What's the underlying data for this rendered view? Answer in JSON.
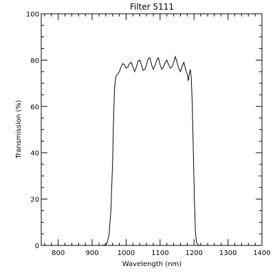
{
  "chart_data": {
    "type": "line",
    "title": "Filter 5111",
    "xlabel": "Wavelength (nm)",
    "ylabel": "Transmission (%)",
    "xlim": [
      750,
      1400
    ],
    "ylim": [
      0,
      100
    ],
    "x_ticks": [
      800,
      900,
      1000,
      1100,
      1200,
      1300,
      1400
    ],
    "y_ticks": [
      0,
      20,
      40,
      60,
      80,
      100
    ],
    "x_tick_labels": [
      "800",
      "900",
      "1000",
      "1100",
      "1200",
      "1300",
      "1400"
    ],
    "y_tick_labels": [
      "0",
      "20",
      "40",
      "60",
      "80",
      "100"
    ],
    "x_minor_step": 20,
    "y_minor_step": 5,
    "grid": false,
    "series": [
      {
        "x": [
          750,
          900,
          930,
          940,
          945,
          950,
          955,
          960,
          963,
          966,
          970,
          975,
          980,
          985,
          990,
          995,
          1000,
          1005,
          1010,
          1015,
          1020,
          1025,
          1030,
          1035,
          1040,
          1045,
          1050,
          1055,
          1060,
          1065,
          1070,
          1075,
          1080,
          1085,
          1090,
          1095,
          1100,
          1105,
          1110,
          1115,
          1120,
          1125,
          1130,
          1135,
          1140,
          1145,
          1150,
          1155,
          1160,
          1165,
          1170,
          1175,
          1180,
          1183,
          1186,
          1189,
          1192,
          1195,
          1198,
          1201,
          1204,
          1207,
          1212,
          1220,
          1400
        ],
        "y": [
          0,
          0,
          0,
          0.3,
          1.5,
          5,
          15,
          35,
          55,
          68,
          73,
          74,
          75,
          77,
          78.5,
          78,
          76.5,
          77,
          78.5,
          79,
          77,
          75,
          77,
          79.5,
          80,
          78,
          75.5,
          76,
          78,
          80.5,
          81,
          78,
          76,
          77.5,
          80,
          81,
          78,
          76,
          77,
          79,
          80,
          78,
          76.5,
          77,
          79,
          81.5,
          79,
          76.5,
          75,
          77.5,
          79,
          76,
          74,
          71,
          74,
          76,
          72,
          60,
          40,
          20,
          6,
          1.5,
          0.2,
          0,
          0
        ]
      }
    ]
  }
}
